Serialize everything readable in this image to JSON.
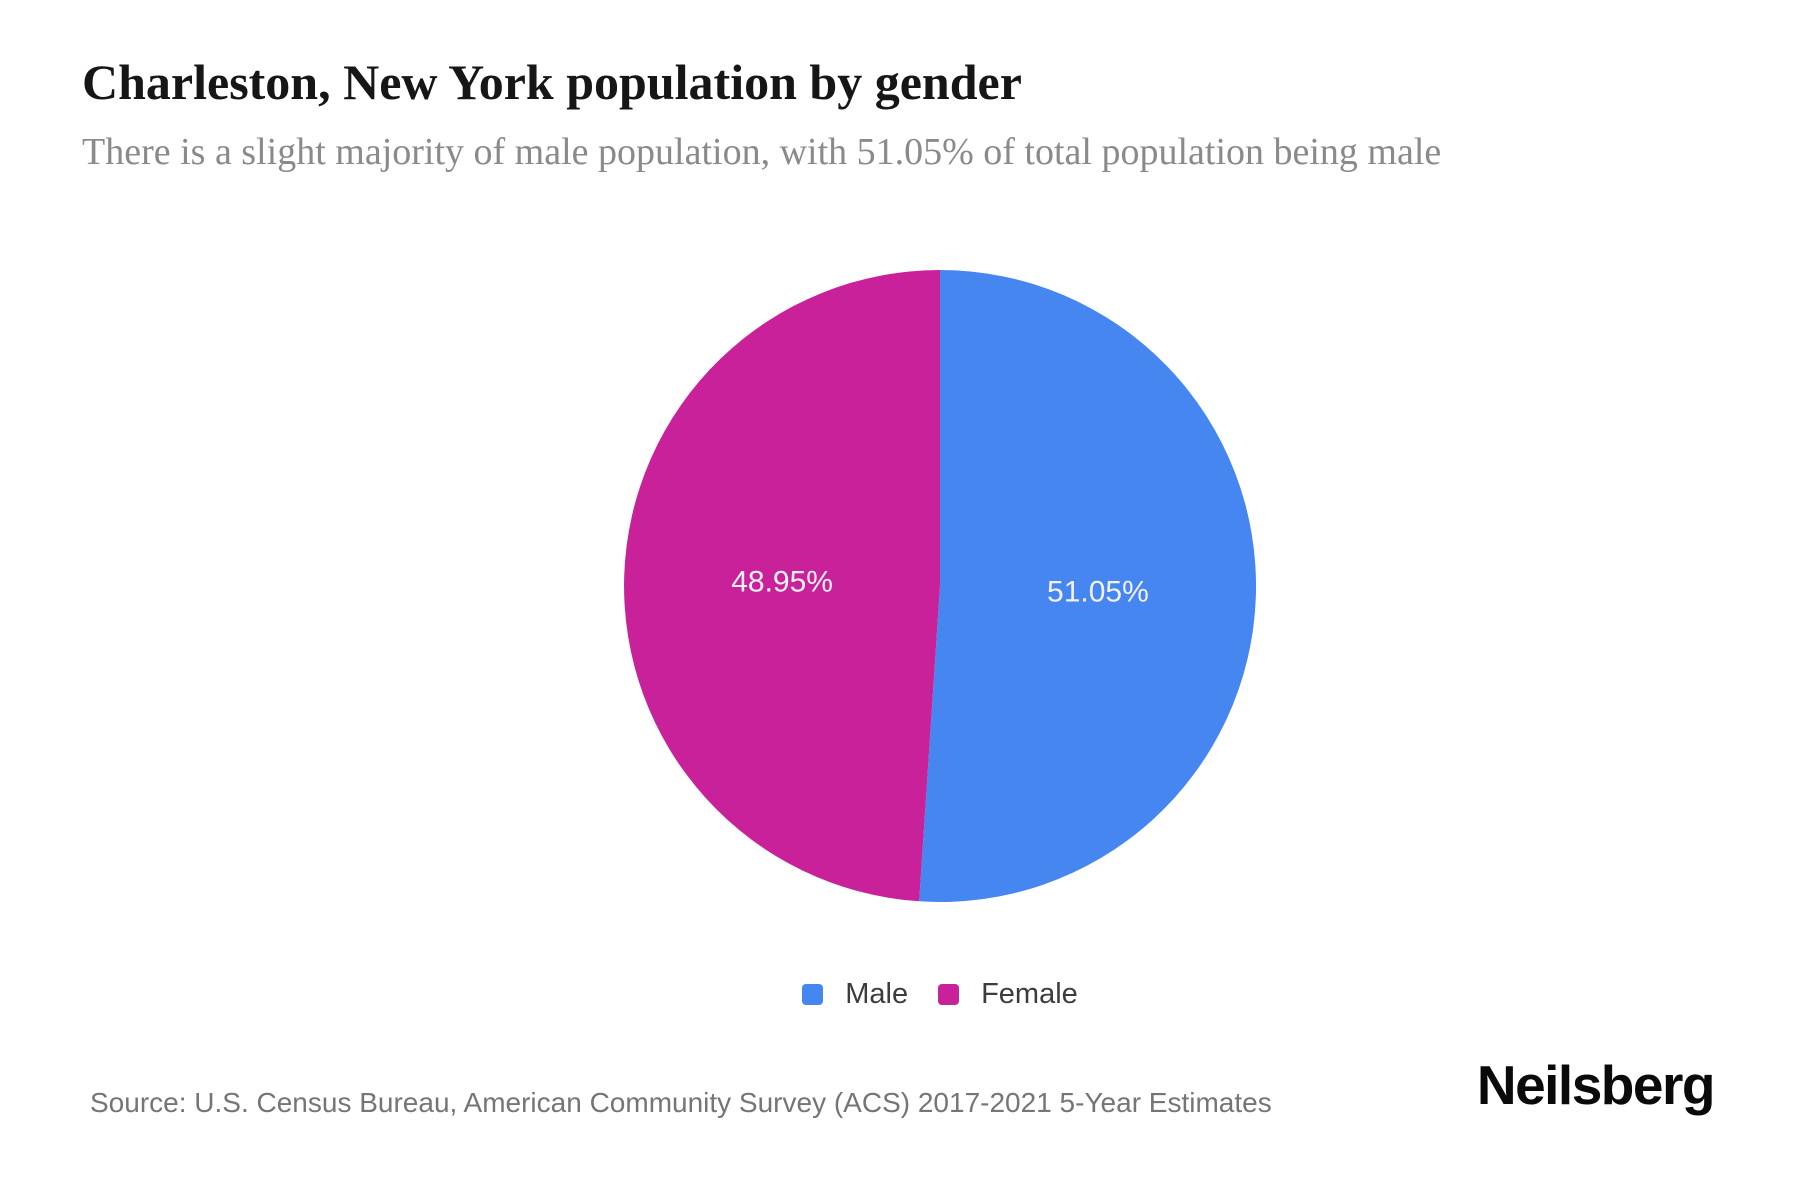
{
  "header": {
    "title": "Charleston, New York population by gender",
    "subtitle": "There is a slight majority of male population, with 51.05% of total population being male"
  },
  "chart_data": {
    "type": "pie",
    "title": "Charleston, New York population by gender",
    "categories": [
      "Male",
      "Female"
    ],
    "values": [
      51.05,
      48.95
    ],
    "slices": [
      {
        "label": "Male",
        "value": 51.05,
        "display": "51.05%",
        "color": "#4586f0"
      },
      {
        "label": "Female",
        "value": 48.95,
        "display": "48.95%",
        "color": "#c9219a"
      }
    ],
    "start_angle_deg": 0,
    "direction": "clockwise",
    "slice_label_color": "#f2f1f7",
    "legend_position": "bottom",
    "unit": "%"
  },
  "footer": {
    "source": "Source: U.S. Census Bureau, American Community Survey (ACS) 2017-2021 5-Year Estimates",
    "brand": "Neilsberg"
  }
}
